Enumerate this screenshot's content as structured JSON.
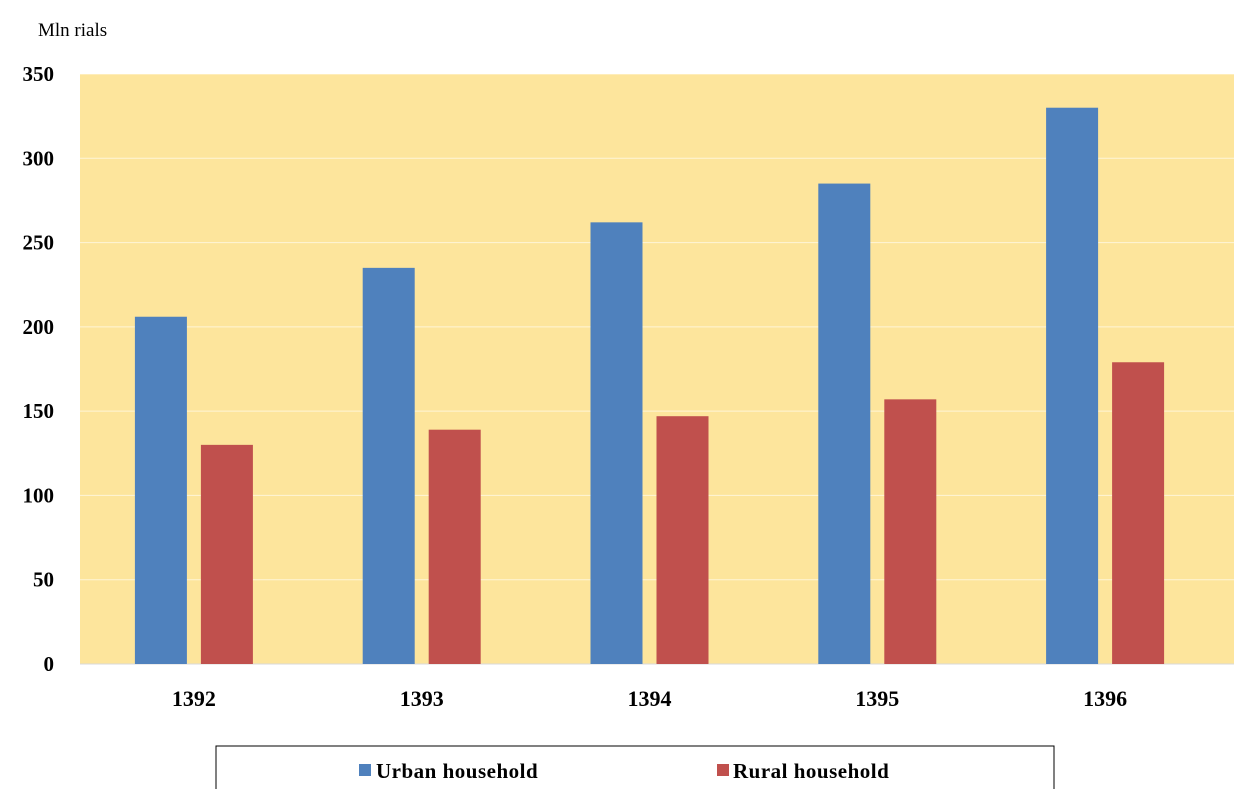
{
  "chart_data": {
    "type": "bar",
    "y_unit_label": "Mln rials",
    "categories": [
      "1392",
      "1393",
      "1394",
      "1395",
      "1396"
    ],
    "series": [
      {
        "name": "Urban household",
        "color": "#4F81BD",
        "values": [
          206,
          235,
          262,
          285,
          330
        ]
      },
      {
        "name": "Rural household",
        "color": "#C0504D",
        "values": [
          130,
          139,
          147,
          157,
          179
        ]
      }
    ],
    "ylim": [
      0,
      350
    ],
    "yticks": [
      "0",
      "50",
      "100",
      "150",
      "200",
      "250",
      "300",
      "350"
    ],
    "plot_background": "#FDE59C",
    "grid": true,
    "legend_position": "bottom"
  }
}
